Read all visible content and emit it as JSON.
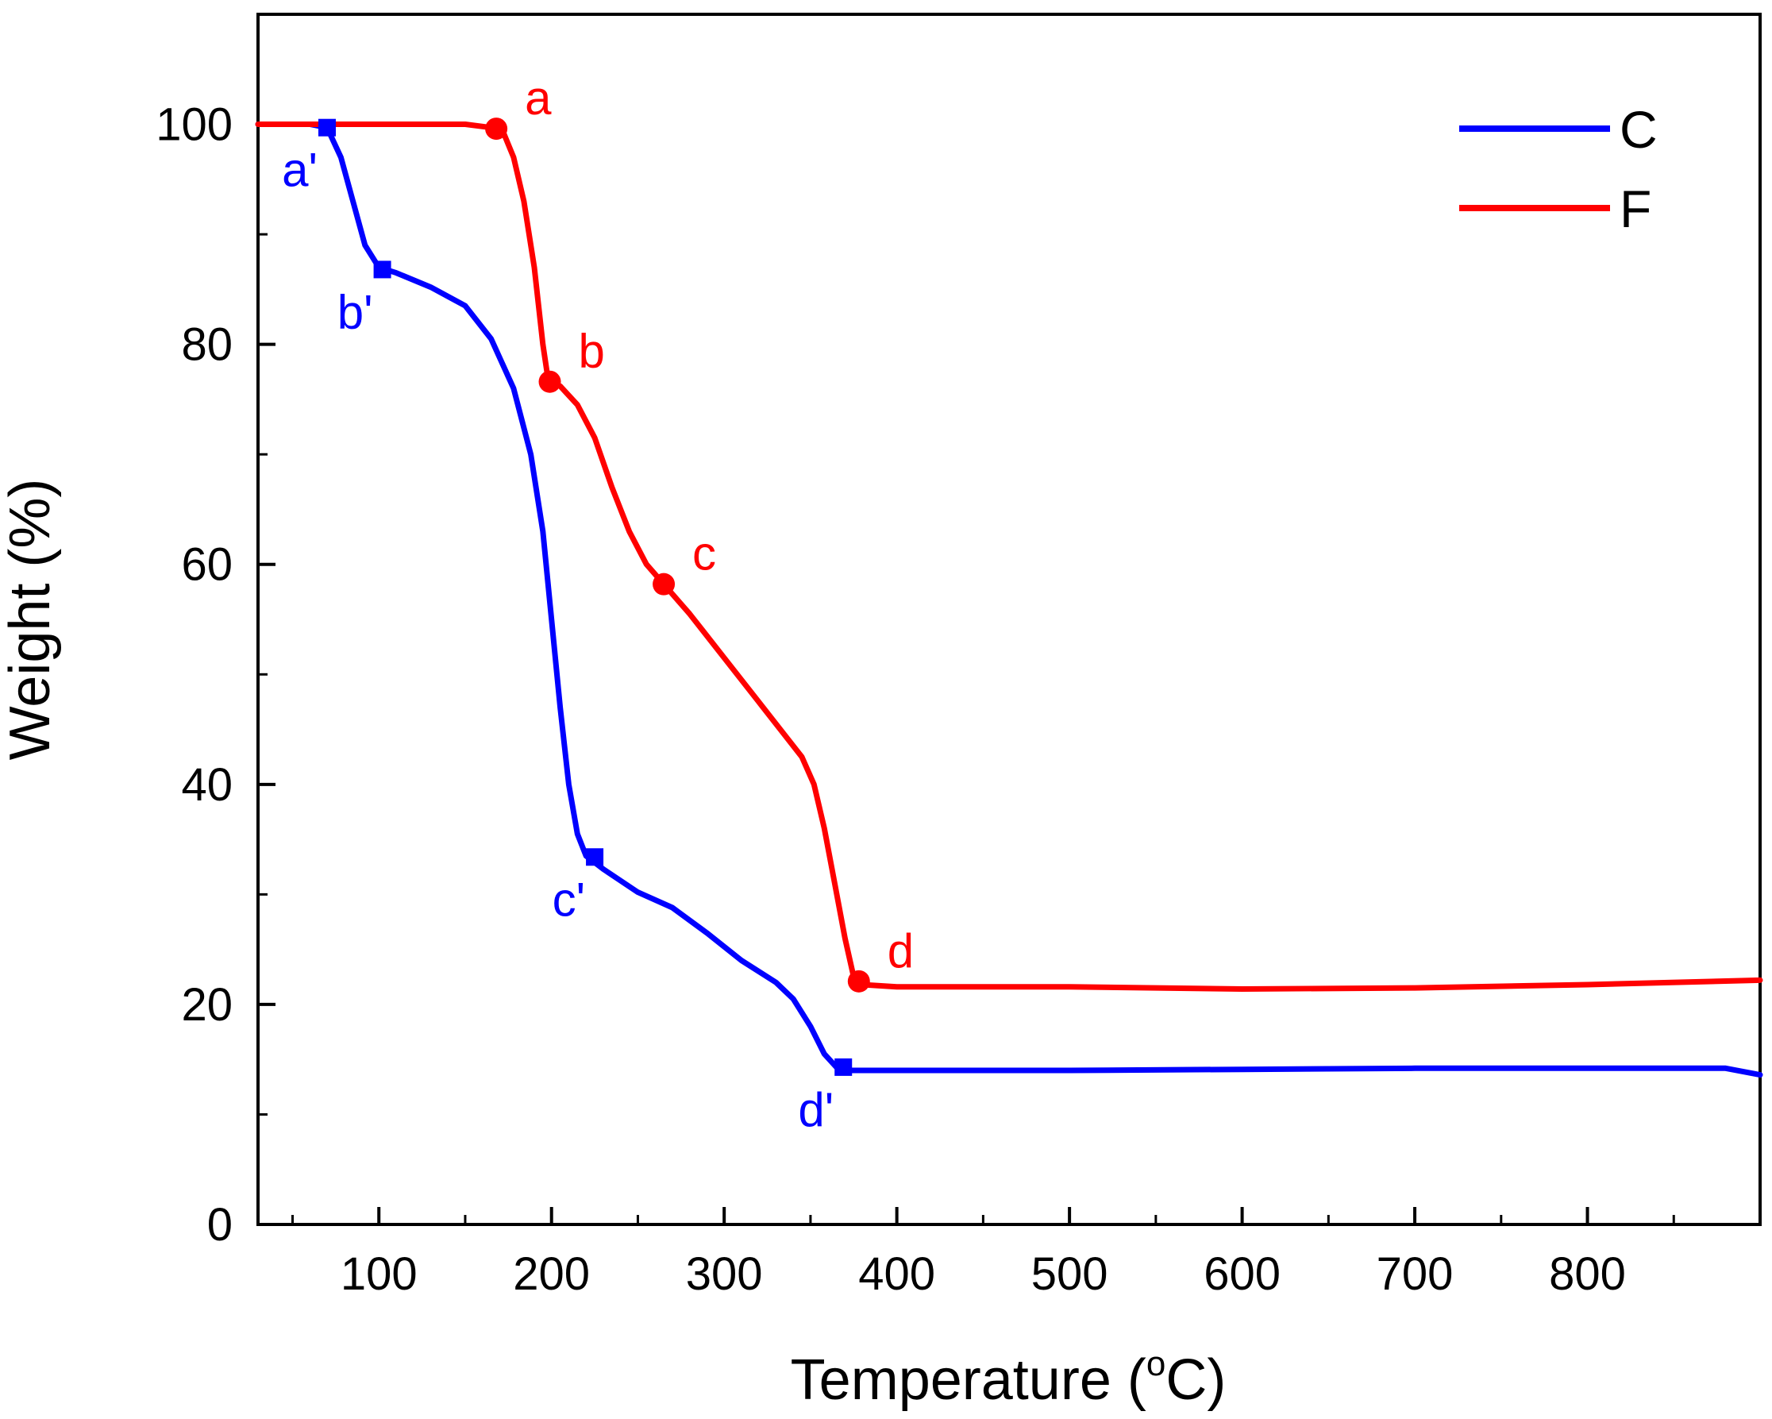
{
  "chart_data": {
    "type": "line",
    "title": "",
    "xlabel": "Temperature (",
    "xlabel_sup": "o",
    "xlabel_tail": "C)",
    "ylabel": "Weight (%)",
    "xlim": [
      30,
      900
    ],
    "ylim": [
      0,
      110
    ],
    "x_ticks": [
      100,
      200,
      300,
      400,
      500,
      600,
      700,
      800
    ],
    "y_ticks": [
      0,
      20,
      40,
      60,
      80,
      100
    ],
    "y_minor_ticks": [
      10,
      30,
      50,
      70,
      90
    ],
    "x_minor_ticks": [
      50,
      150,
      250,
      350,
      450,
      550,
      650,
      750,
      850
    ],
    "grid": false,
    "legend_position": "top-right",
    "series": [
      {
        "name": "C",
        "color": "#0000ff",
        "marker": "square",
        "points": [
          [
            30,
            100
          ],
          [
            60,
            100
          ],
          [
            70,
            99.7
          ],
          [
            78,
            97
          ],
          [
            85,
            93
          ],
          [
            92,
            89
          ],
          [
            100,
            87
          ],
          [
            110,
            86.5
          ],
          [
            130,
            85.2
          ],
          [
            150,
            83.5
          ],
          [
            165,
            80.5
          ],
          [
            178,
            76
          ],
          [
            188,
            70
          ],
          [
            195,
            63
          ],
          [
            200,
            55
          ],
          [
            205,
            47
          ],
          [
            210,
            40
          ],
          [
            215,
            35.5
          ],
          [
            220,
            33.5
          ],
          [
            230,
            32.3
          ],
          [
            250,
            30.2
          ],
          [
            270,
            28.8
          ],
          [
            290,
            26.5
          ],
          [
            310,
            24
          ],
          [
            330,
            22
          ],
          [
            340,
            20.5
          ],
          [
            350,
            18
          ],
          [
            358,
            15.5
          ],
          [
            365,
            14.3
          ],
          [
            372,
            14
          ],
          [
            400,
            14
          ],
          [
            500,
            14
          ],
          [
            600,
            14.1
          ],
          [
            700,
            14.2
          ],
          [
            800,
            14.2
          ],
          [
            880,
            14.2
          ],
          [
            900,
            13.6
          ]
        ],
        "markers": [
          {
            "x": 70,
            "y": 99.7,
            "label": "a'"
          },
          {
            "x": 102,
            "y": 86.8,
            "label": "b'"
          },
          {
            "x": 225,
            "y": 33.4,
            "label": "c'"
          },
          {
            "x": 369,
            "y": 14.3,
            "label": "d'"
          }
        ]
      },
      {
        "name": "F",
        "color": "#ff0000",
        "marker": "circle",
        "points": [
          [
            30,
            100
          ],
          [
            100,
            100
          ],
          [
            150,
            100
          ],
          [
            165,
            99.7
          ],
          [
            172,
            99.3
          ],
          [
            178,
            97
          ],
          [
            184,
            93
          ],
          [
            190,
            87
          ],
          [
            195,
            80
          ],
          [
            198,
            76.8
          ],
          [
            205,
            76.2
          ],
          [
            215,
            74.5
          ],
          [
            225,
            71.5
          ],
          [
            235,
            67
          ],
          [
            245,
            63
          ],
          [
            255,
            60
          ],
          [
            265,
            58.2
          ],
          [
            280,
            55.5
          ],
          [
            300,
            51.5
          ],
          [
            320,
            47.5
          ],
          [
            335,
            44.5
          ],
          [
            345,
            42.5
          ],
          [
            352,
            40
          ],
          [
            358,
            36
          ],
          [
            364,
            31
          ],
          [
            370,
            26
          ],
          [
            375,
            22.5
          ],
          [
            380,
            21.8
          ],
          [
            400,
            21.6
          ],
          [
            500,
            21.6
          ],
          [
            600,
            21.4
          ],
          [
            700,
            21.5
          ],
          [
            800,
            21.8
          ],
          [
            900,
            22.2
          ]
        ],
        "markers": [
          {
            "x": 168,
            "y": 99.6,
            "label": "a"
          },
          {
            "x": 199,
            "y": 76.6,
            "label": "b"
          },
          {
            "x": 265,
            "y": 58.2,
            "label": "c"
          },
          {
            "x": 378,
            "y": 22.1,
            "label": "d"
          }
        ]
      }
    ]
  }
}
